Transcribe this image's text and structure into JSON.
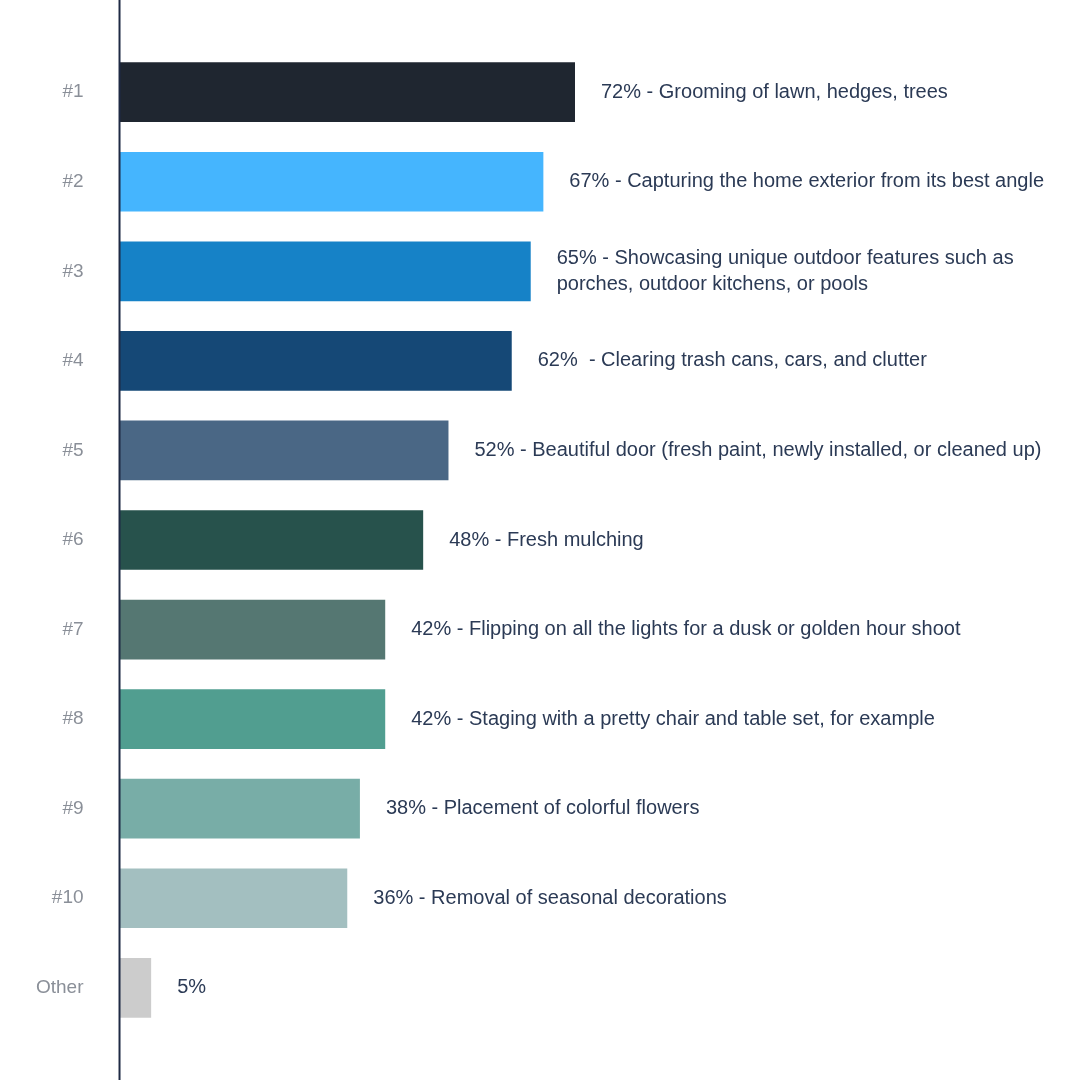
{
  "chart_data": {
    "type": "bar",
    "orientation": "horizontal",
    "categories": [
      "#1",
      "#2",
      "#3",
      "#4",
      "#5",
      "#6",
      "#7",
      "#8",
      "#9",
      "#10",
      "Other"
    ],
    "values": [
      72,
      67,
      65,
      62,
      52,
      48,
      42,
      42,
      38,
      36,
      5
    ],
    "colors": [
      "#1f2630",
      "#45b5fe",
      "#1682c7",
      "#154876",
      "#4a6785",
      "#27524c",
      "#557772",
      "#519e90",
      "#78ada7",
      "#a3bfc0",
      "#cccccc"
    ],
    "value_labels": [
      "72% - Grooming of lawn, hedges, trees",
      "67% - Capturing the home exterior from its best angle",
      "65% - Showcasing unique outdoor features such as porches, outdoor kitchens, or pools",
      "62%  - Clearing trash cans, cars, and clutter",
      "52% - Beautiful door (fresh paint, newly installed, or cleaned up)",
      "48% - Fresh mulching",
      "42% - Flipping on all the lights for a dusk or golden hour shoot",
      "42% - Staging with a pretty chair and table set, for example",
      "38% - Placement of colorful flowers",
      "36% - Removal of seasonal decorations",
      "5%"
    ],
    "tick_labels": "y",
    "grid": false,
    "legend": false
  }
}
